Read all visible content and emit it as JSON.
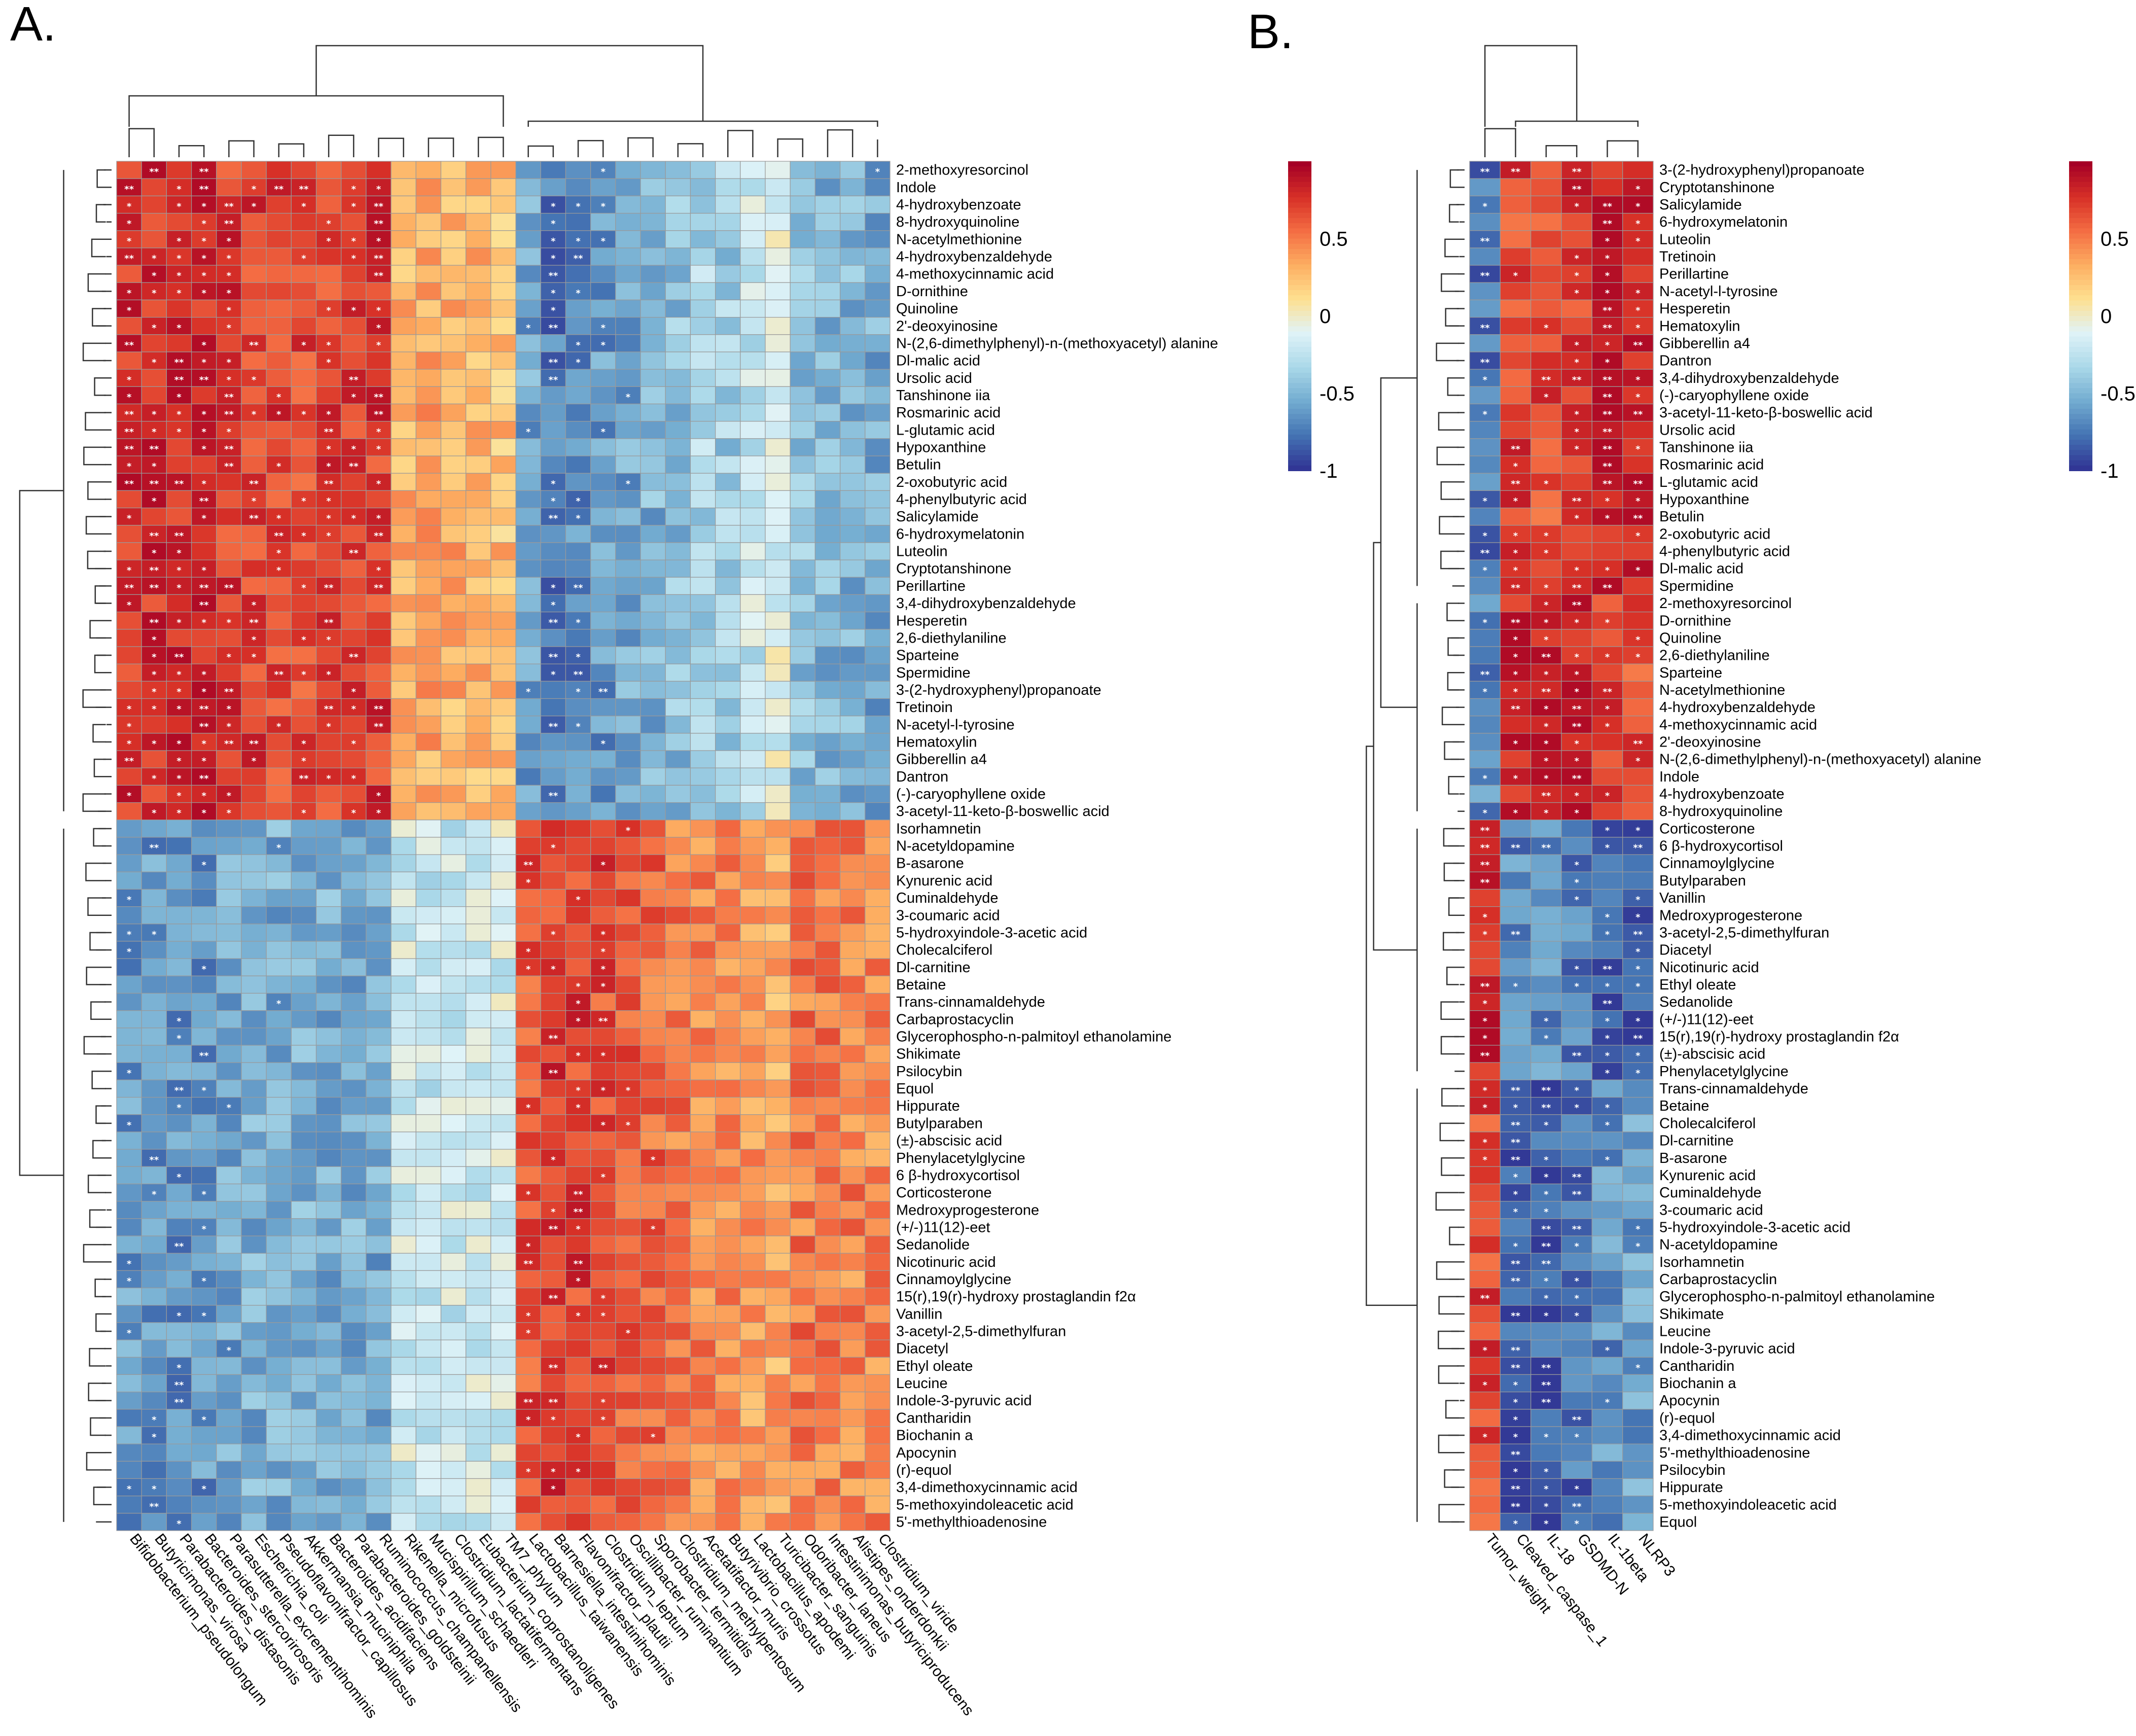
{
  "chart_data": [
    {
      "panel": "A.",
      "type": "heatmap",
      "title": "",
      "color_scale": {
        "min": -1,
        "max": 1,
        "ticks": [
          "0.5",
          "0",
          "-0.5",
          "-1"
        ],
        "colors": [
          "#313695",
          "#4575b4",
          "#74add1",
          "#abd9e9",
          "#e0f3f8",
          "#fee090",
          "#fdae61",
          "#f46d43",
          "#d73027",
          "#a50026"
        ]
      },
      "columns": [
        "Bifidobacterium_pseudolongum",
        "Butyricimonas_virosa",
        "Parabacteroides_distasonis",
        "Bacteroides_stercorirosoris",
        "Parasutterella_excrementihominis",
        "Escherichia_coli",
        "Pseudoflavonifractor_capillosus",
        "Akkermansia_muciniphila",
        "Bacteroides_acidifaciens",
        "Parabacteroides_goldsteinii",
        "Ruminococcus_champanellensis",
        "Rikenella_microfusus",
        "Mucispirillum_schaedleri",
        "Clostridium_lactatifermentans",
        "Eubacterium_coprostanoligenes",
        "TM7_phylum",
        "Lactobacillus_taiwanensis",
        "Barnesiella_intestinihominis",
        "Flavonifractor_plautii",
        "Clostridium_leptum",
        "Oscillibacter_ruminantium",
        "Sporobacter_termitidis",
        "Clostridium_methylpentosum",
        "Acetatifactor_muris",
        "Butyrivibrio_crossotus",
        "Lactobacillus_apodemi",
        "Turicibacter_sanguinis",
        "Odoribacter_laneus",
        "Intestinimonas_butyriciproducens",
        "Alistipes_onderdonkii",
        "Clostridium_viride"
      ],
      "rows": [
        "2-methoxyresorcinol",
        "Indole",
        "4-hydroxybenzoate",
        "8-hydroxyquinoline",
        "N-acetylmethionine",
        "4-hydroxybenzaldehyde",
        "4-methoxycinnamic acid",
        "D-ornithine",
        "Quinoline",
        "2'-deoxyinosine",
        "N-(2,6-dimethylphenyl)-n-(methoxyacetyl) alanine",
        "Dl-malic acid",
        "Ursolic acid",
        "Tanshinone iia",
        "Rosmarinic acid",
        "L-glutamic acid",
        "Hypoxanthine",
        "Betulin",
        "2-oxobutyric acid",
        "4-phenylbutyric acid",
        "Salicylamide",
        "6-hydroxymelatonin",
        "Luteolin",
        "Cryptotanshinone",
        "Perillartine",
        "3,4-dihydroxybenzaldehyde",
        "Hesperetin",
        "2,6-diethylaniline",
        "Sparteine",
        "Spermidine",
        "3-(2-hydroxyphenyl)propanoate",
        "Tretinoin",
        "N-acetyl-l-tyrosine",
        "Hematoxylin",
        "Gibberellin a4",
        "Dantron",
        "(-)-caryophyllene oxide",
        "3-acetyl-11-keto-β-boswellic acid",
        "Isorhamnetin",
        "N-acetyldopamine",
        "Β-asarone",
        "Kynurenic acid",
        "Cuminaldehyde",
        "3-coumaric acid",
        "5-hydroxyindole-3-acetic acid",
        "Cholecalciferol",
        "Dl-carnitine",
        "Betaine",
        "Trans-cinnamaldehyde",
        "Carbaprostacyclin",
        "Glycerophospho-n-palmitoyl ethanolamine",
        "Shikimate",
        "Psilocybin",
        "Equol",
        "Hippurate",
        "Butylparaben",
        "(±)-abscisic acid",
        "Phenylacetylglycine",
        "6 β-hydroxycortisol",
        "Corticosterone",
        "Medroxyprogesterone",
        "(+/-)11(12)-eet",
        "Sedanolide",
        "Nicotinuric acid",
        "Cinnamoylglycine",
        "15(r),19(r)-hydroxy prostaglandin f2α",
        "Vanillin",
        "3-acetyl-2,5-dimethylfuran",
        "Diacetyl",
        "Ethyl oleate",
        "Leucine",
        "Indole-3-pyruvic acid",
        "Cantharidin",
        "Biochanin a",
        "Apocynin",
        "(r)-equol",
        "3,4-dimethoxycinnamic acid",
        "5-methoxyindoleacetic acid",
        "5'-methylthioadenosine"
      ],
      "row_clusters": [
        {
          "start": 0,
          "end": 37,
          "column_pattern": [
            0.78,
            0.8,
            0.82,
            0.82,
            0.74,
            0.72,
            0.72,
            0.7,
            0.72,
            0.72,
            0.74,
            0.3,
            0.34,
            0.32,
            0.3,
            0.26,
            -0.58,
            -0.76,
            -0.7,
            -0.64,
            -0.58,
            -0.52,
            -0.46,
            -0.34,
            -0.38,
            -0.22,
            -0.12,
            -0.46,
            -0.5,
            -0.52,
            -0.56
          ]
        },
        {
          "start": 38,
          "end": 78,
          "column_pattern": [
            -0.62,
            -0.64,
            -0.66,
            -0.66,
            -0.58,
            -0.55,
            -0.55,
            -0.52,
            -0.55,
            -0.55,
            -0.56,
            -0.18,
            -0.22,
            -0.2,
            -0.18,
            -0.16,
            0.66,
            0.74,
            0.72,
            0.68,
            0.62,
            0.58,
            0.52,
            0.48,
            0.46,
            0.4,
            0.34,
            0.52,
            0.5,
            0.48,
            0.46
          ]
        }
      ],
      "significance": "* p<0.05, ** p<0.01 (white asterisks in cells)"
    },
    {
      "panel": "B.",
      "type": "heatmap",
      "title": "",
      "color_scale": {
        "min": -1,
        "max": 1,
        "ticks": [
          "0.5",
          "0",
          "-0.5",
          "-1"
        ],
        "colors": [
          "#313695",
          "#4575b4",
          "#74add1",
          "#abd9e9",
          "#e0f3f8",
          "#fee090",
          "#fdae61",
          "#f46d43",
          "#d73027",
          "#a50026"
        ]
      },
      "columns": [
        "Tumor_weight",
        "Cleaved_caspase_1",
        "IL-18",
        "GSDMD-N",
        "IL-1beta",
        "NLRP3"
      ],
      "rows": [
        "3-(2-hydroxyphenyl)propanoate",
        "Cryptotanshinone",
        "Salicylamide",
        "6-hydroxymelatonin",
        "Luteolin",
        "Tretinoin",
        "Perillartine",
        "N-acetyl-l-tyrosine",
        "Hesperetin",
        "Hematoxylin",
        "Gibberellin a4",
        "Dantron",
        "3,4-dihydroxybenzaldehyde",
        "(-)-caryophyllene oxide",
        "3-acetyl-11-keto-β-boswellic acid",
        "Ursolic acid",
        "Tanshinone iia",
        "Rosmarinic acid",
        "L-glutamic acid",
        "Hypoxanthine",
        "Betulin",
        "2-oxobutyric acid",
        "4-phenylbutyric acid",
        "Dl-malic acid",
        "Spermidine",
        "2-methoxyresorcinol",
        "D-ornithine",
        "Quinoline",
        "2,6-diethylaniline",
        "Sparteine",
        "N-acetylmethionine",
        "4-hydroxybenzaldehyde",
        "4-methoxycinnamic acid",
        "2'-deoxyinosine",
        "N-(2,6-dimethylphenyl)-n-(methoxyacetyl) alanine",
        "Indole",
        "4-hydroxybenzoate",
        "8-hydroxyquinoline",
        "Corticosterone",
        "6 β-hydroxycortisol",
        "Cinnamoylglycine",
        "Butylparaben",
        "Vanillin",
        "Medroxyprogesterone",
        "3-acetyl-2,5-dimethylfuran",
        "Diacetyl",
        "Nicotinuric acid",
        "Ethyl oleate",
        "Sedanolide",
        "(+/-)11(12)-eet",
        "15(r),19(r)-hydroxy prostaglandin f2α",
        "(±)-abscisic acid",
        "Phenylacetylglycine",
        "Trans-cinnamaldehyde",
        "Betaine",
        "Cholecalciferol",
        "Dl-carnitine",
        "Β-asarone",
        "Kynurenic acid",
        "Cuminaldehyde",
        "3-coumaric acid",
        "5-hydroxyindole-3-acetic acid",
        "N-acetyldopamine",
        "Isorhamnetin",
        "Carbaprostacyclin",
        "Glycerophospho-n-palmitoyl ethanolamine",
        "Shikimate",
        "Leucine",
        "Indole-3-pyruvic acid",
        "Cantharidin",
        "Biochanin a",
        "Apocynin",
        "(r)-equol",
        "3,4-dimethoxycinnamic acid",
        "5'-methylthioadenosine",
        "Psilocybin",
        "Hippurate",
        "5-methoxyindoleacetic acid",
        "Equol"
      ],
      "row_clusters": [
        {
          "start": 0,
          "end": 24,
          "column_pattern": [
            -0.78,
            0.7,
            0.68,
            0.74,
            0.88,
            0.88
          ]
        },
        {
          "start": 25,
          "end": 37,
          "column_pattern": [
            -0.68,
            0.86,
            0.86,
            0.84,
            0.7,
            0.66
          ]
        },
        {
          "start": 38,
          "end": 52,
          "column_pattern": [
            0.86,
            -0.7,
            -0.68,
            -0.74,
            -0.88,
            -0.88
          ]
        },
        {
          "start": 53,
          "end": 78,
          "column_pattern": [
            0.7,
            -0.86,
            -0.86,
            -0.8,
            -0.66,
            -0.62
          ]
        }
      ],
      "significance": "* p<0.05, ** p<0.01 (white asterisks in cells)"
    }
  ]
}
